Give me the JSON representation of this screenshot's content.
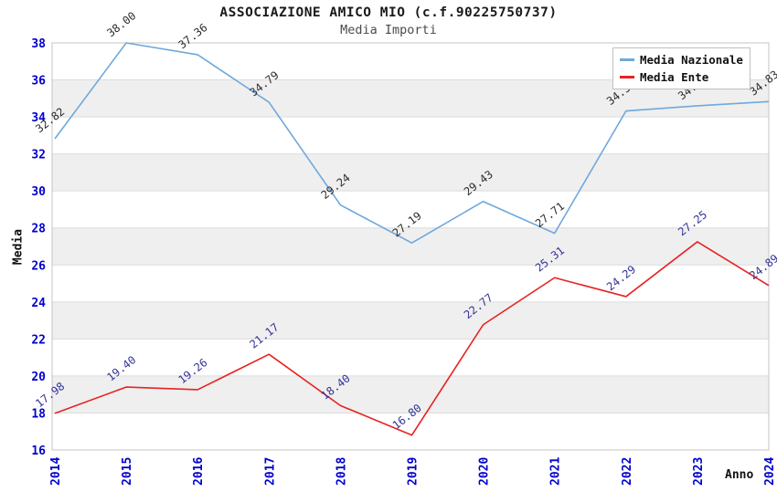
{
  "title": "ASSOCIAZIONE AMICO MIO (c.f.90225750737)",
  "subtitle": "Media Importi",
  "legend": {
    "items": [
      {
        "label": "Media Nazionale",
        "color": "#6fa8dc"
      },
      {
        "label": "Media Ente",
        "color": "#e82222"
      }
    ]
  },
  "axes": {
    "y_title": "Media",
    "x_title": "Anno",
    "tick_color": "#0000cc",
    "y_ticks": [
      16,
      18,
      20,
      22,
      24,
      26,
      28,
      30,
      32,
      34,
      36,
      38
    ],
    "x_ticks": [
      "2014",
      "2015",
      "2016",
      "2017",
      "2018",
      "2019",
      "2020",
      "2021",
      "2022",
      "2023",
      "2024"
    ]
  },
  "chart_data": {
    "type": "line",
    "title": "ASSOCIAZIONE AMICO MIO (c.f.90225750737)",
    "subtitle": "Media Importi",
    "categories": [
      "2014",
      "2015",
      "2016",
      "2017",
      "2018",
      "2019",
      "2020",
      "2021",
      "2022",
      "2023",
      "2024"
    ],
    "series": [
      {
        "name": "Media Nazionale",
        "color": "#6fa8dc",
        "label_color": "#2d2d2d",
        "values": [
          32.82,
          38.0,
          37.36,
          34.79,
          29.24,
          27.19,
          29.43,
          27.71,
          34.32,
          34.6,
          34.83
        ]
      },
      {
        "name": "Media Ente",
        "color": "#e82222",
        "label_color": "#333399",
        "values": [
          17.98,
          19.4,
          19.26,
          21.17,
          18.4,
          16.8,
          22.77,
          25.31,
          24.29,
          27.25,
          24.89
        ]
      }
    ],
    "xlabel": "Anno",
    "ylabel": "Media",
    "ylim": [
      16,
      38
    ],
    "ytick_step": 2,
    "grid": "horizontal-bands",
    "band_colors": [
      "#ffffff",
      "#efefef"
    ],
    "gridline_color": "#dcdcdc",
    "border_color": "#c6c6c6",
    "legend_position": "top-right",
    "point_label_format": "two-decimals-rotated"
  }
}
